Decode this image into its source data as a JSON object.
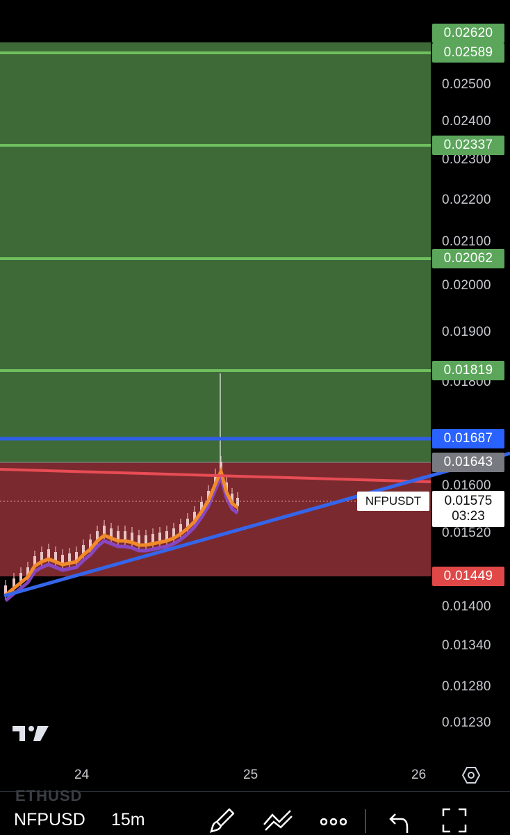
{
  "chart": {
    "symbol": "NFPUSDT",
    "last_price": "0.01575",
    "countdown": "03:23",
    "price_axis": [
      {
        "label": "0.02500",
        "price": 0.025
      },
      {
        "label": "0.02400",
        "price": 0.024
      },
      {
        "label": "0.02300",
        "price": 0.023
      },
      {
        "label": "0.02200",
        "price": 0.022
      },
      {
        "label": "0.02100",
        "price": 0.021
      },
      {
        "label": "0.02000",
        "price": 0.02
      },
      {
        "label": "0.01900",
        "price": 0.019
      },
      {
        "label": "0.01800",
        "price": 0.018
      },
      {
        "label": "0.01600",
        "price": 0.016
      },
      {
        "label": "0.01520",
        "price": 0.0152
      },
      {
        "label": "0.01400",
        "price": 0.014
      },
      {
        "label": "0.01340",
        "price": 0.0134
      },
      {
        "label": "0.01280",
        "price": 0.0128
      },
      {
        "label": "0.01230",
        "price": 0.0123
      }
    ],
    "levels": [
      {
        "label": "0.02620",
        "price": 0.0262,
        "color": "#5ba65b",
        "kind": "badge"
      },
      {
        "label": "0.02589",
        "price": 0.02589,
        "color": "#5ba65b",
        "kind": "target"
      },
      {
        "label": "0.02337",
        "price": 0.02337,
        "color": "#5ba65b",
        "kind": "target"
      },
      {
        "label": "0.02062",
        "price": 0.02062,
        "color": "#5ba65b",
        "kind": "target"
      },
      {
        "label": "0.01819",
        "price": 0.01819,
        "color": "#5ba65b",
        "kind": "target"
      },
      {
        "label": "0.01687",
        "price": 0.01687,
        "color": "#2962ff",
        "kind": "resistance"
      },
      {
        "label": "0.01643",
        "price": 0.01643,
        "color": "#777a80",
        "kind": "entry"
      },
      {
        "label": "0.01449",
        "price": 0.01449,
        "color": "#e04848",
        "kind": "stop"
      }
    ],
    "time_axis": [
      "24",
      "25",
      "26"
    ],
    "colors": {
      "profit_zone": "#3e6a38",
      "loss_zone": "#7a2a2e",
      "target_line": "#6fbf5f",
      "resistance_line": "#2f5ee8",
      "trend_line": "#3565ea",
      "down_line": "#e84c55",
      "ema_fast": "#f08a2a",
      "ema_slow": "#8a4ad0"
    }
  },
  "toolbar": {
    "ghost_symbol": "ETHUSD",
    "symbol": "NFPUSD",
    "interval": "15m",
    "icons": [
      "brush-icon",
      "drawing-tools-icon",
      "more-icon",
      "undo-icon",
      "fullscreen-icon"
    ]
  }
}
